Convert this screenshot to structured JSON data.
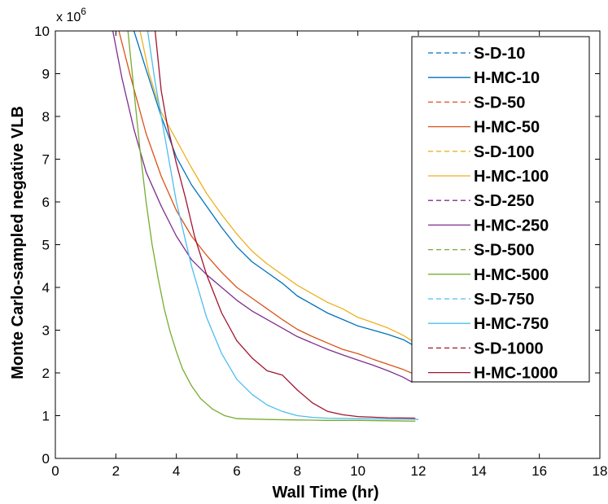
{
  "chart_data": {
    "type": "line",
    "xlabel": "Wall Time (hr)",
    "ylabel": "Monte Carlo-sampled negative VLB",
    "xlim": [
      0,
      18
    ],
    "ylim": [
      0,
      10
    ],
    "y_multiplier_base": "x 10",
    "y_multiplier_exp": "6",
    "xticks": [
      "0",
      "2",
      "4",
      "6",
      "8",
      "10",
      "12",
      "14",
      "16",
      "18"
    ],
    "yticks": [
      "0",
      "1",
      "2",
      "3",
      "4",
      "5",
      "6",
      "7",
      "8",
      "9",
      "10"
    ],
    "legend_position": "top-right",
    "series": [
      {
        "name": "S-D-10",
        "color": "#0072BD",
        "dash": true,
        "x": [],
        "y": []
      },
      {
        "name": "H-MC-10",
        "color": "#0072BD",
        "dash": false,
        "x": [
          2.6,
          3.0,
          3.5,
          4.0,
          4.5,
          5.0,
          5.5,
          6.0,
          6.5,
          7.0,
          7.5,
          8.0,
          8.5,
          9.0,
          9.5,
          10.0,
          10.5,
          11.0,
          11.5,
          12.0
        ],
        "y": [
          10.0,
          9.1,
          8.0,
          7.05,
          6.4,
          5.9,
          5.4,
          4.95,
          4.6,
          4.35,
          4.1,
          3.8,
          3.6,
          3.4,
          3.25,
          3.1,
          3.0,
          2.9,
          2.78,
          2.58
        ]
      },
      {
        "name": "S-D-50",
        "color": "#D95319",
        "dash": true,
        "x": [],
        "y": []
      },
      {
        "name": "H-MC-50",
        "color": "#D95319",
        "dash": false,
        "x": [
          2.1,
          2.5,
          3.0,
          3.5,
          4.0,
          4.5,
          5.0,
          5.5,
          6.0,
          6.5,
          7.0,
          7.5,
          8.0,
          8.5,
          9.0,
          9.5,
          10.0,
          10.5,
          11.0,
          11.5,
          11.9
        ],
        "y": [
          10.0,
          8.9,
          7.6,
          6.6,
          5.8,
          5.2,
          4.75,
          4.35,
          4.0,
          3.75,
          3.5,
          3.25,
          3.02,
          2.85,
          2.7,
          2.55,
          2.45,
          2.32,
          2.2,
          2.08,
          1.96
        ]
      },
      {
        "name": "S-D-100",
        "color": "#EDB120",
        "dash": true,
        "x": [],
        "y": []
      },
      {
        "name": "H-MC-100",
        "color": "#EDB120",
        "dash": false,
        "x": [
          2.8,
          3.1,
          3.5,
          4.0,
          4.5,
          5.0,
          5.5,
          6.0,
          6.5,
          7.0,
          7.5,
          8.0,
          8.5,
          9.0,
          9.5,
          10.0,
          10.5,
          11.0,
          11.5,
          11.9
        ],
        "y": [
          10.0,
          9.0,
          8.1,
          7.45,
          6.8,
          6.2,
          5.7,
          5.25,
          4.85,
          4.55,
          4.3,
          4.05,
          3.85,
          3.65,
          3.5,
          3.3,
          3.18,
          3.05,
          2.88,
          2.7
        ]
      },
      {
        "name": "S-D-250",
        "color": "#7E2F8E",
        "dash": true,
        "x": [],
        "y": []
      },
      {
        "name": "H-MC-250",
        "color": "#7E2F8E",
        "dash": false,
        "x": [
          1.9,
          2.2,
          2.6,
          3.0,
          3.5,
          4.0,
          4.5,
          5.0,
          5.5,
          6.0,
          6.5,
          7.0,
          7.5,
          8.0,
          8.5,
          9.0,
          9.5,
          10.0,
          10.5,
          11.0,
          11.5,
          11.8
        ],
        "y": [
          10.0,
          8.9,
          7.7,
          6.7,
          5.9,
          5.2,
          4.65,
          4.3,
          4.0,
          3.7,
          3.45,
          3.25,
          3.05,
          2.85,
          2.7,
          2.55,
          2.42,
          2.3,
          2.18,
          2.05,
          1.9,
          1.78
        ]
      },
      {
        "name": "S-D-500",
        "color": "#77AC30",
        "dash": true,
        "x": [],
        "y": []
      },
      {
        "name": "H-MC-500",
        "color": "#77AC30",
        "dash": false,
        "x": [
          2.4,
          2.6,
          2.8,
          3.0,
          3.2,
          3.4,
          3.6,
          3.8,
          4.0,
          4.2,
          4.5,
          4.8,
          5.2,
          5.6,
          6.0,
          7.0,
          8.0,
          9.0,
          10.0,
          11.0,
          11.9
        ],
        "y": [
          10.0,
          8.6,
          7.2,
          6.0,
          5.0,
          4.2,
          3.5,
          2.95,
          2.5,
          2.1,
          1.7,
          1.4,
          1.15,
          1.0,
          0.93,
          0.91,
          0.9,
          0.89,
          0.89,
          0.88,
          0.87
        ]
      },
      {
        "name": "S-D-750",
        "color": "#4DBEEE",
        "dash": true,
        "x": [],
        "y": []
      },
      {
        "name": "H-MC-750",
        "color": "#4DBEEE",
        "dash": false,
        "x": [
          3.05,
          3.3,
          3.6,
          4.0,
          4.5,
          5.0,
          5.5,
          6.0,
          6.5,
          7.0,
          7.5,
          8.0,
          8.5,
          9.0,
          10.0,
          11.0,
          12.0
        ],
        "y": [
          10.0,
          8.8,
          7.6,
          6.0,
          4.5,
          3.3,
          2.45,
          1.85,
          1.5,
          1.25,
          1.1,
          1.0,
          0.96,
          0.94,
          0.93,
          0.92,
          0.91
        ]
      },
      {
        "name": "S-D-1000",
        "color": "#A2142F",
        "dash": true,
        "x": [],
        "y": []
      },
      {
        "name": "H-MC-1000",
        "color": "#A2142F",
        "dash": false,
        "x": [
          3.3,
          3.5,
          3.7,
          4.0,
          4.3,
          4.6,
          5.0,
          5.5,
          6.0,
          6.5,
          7.0,
          7.5,
          8.0,
          8.5,
          9.0,
          9.5,
          10.0,
          11.0,
          11.9
        ],
        "y": [
          10.0,
          8.6,
          7.8,
          6.9,
          6.1,
          5.2,
          4.3,
          3.4,
          2.75,
          2.35,
          2.05,
          1.95,
          1.6,
          1.3,
          1.1,
          1.02,
          0.98,
          0.95,
          0.94
        ]
      }
    ]
  }
}
